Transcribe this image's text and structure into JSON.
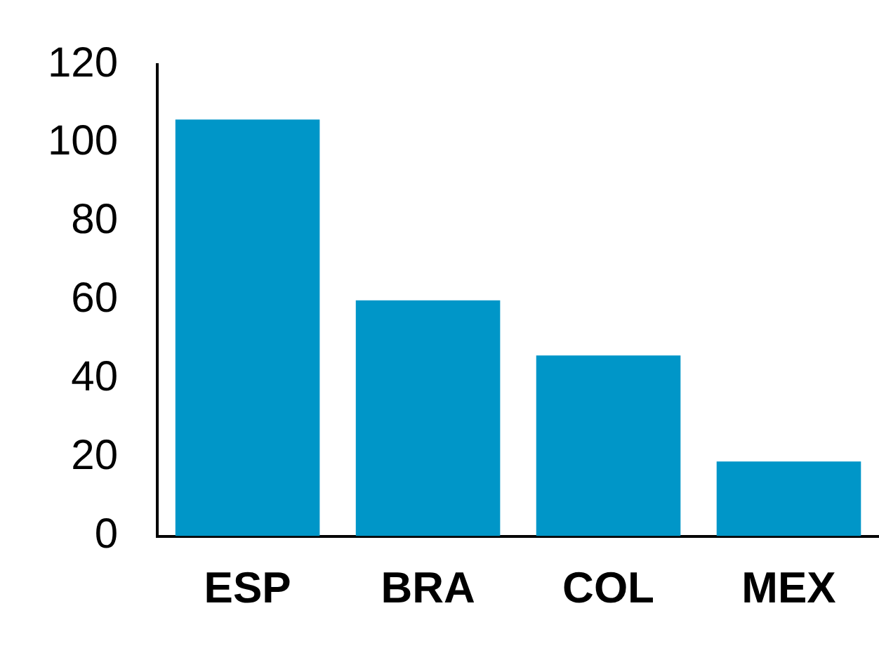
{
  "chart_data": {
    "type": "bar",
    "categories": [
      "ESP",
      "BRA",
      "COL",
      "MEX"
    ],
    "values": [
      106,
      60,
      46,
      19
    ],
    "color": "#0096c8",
    "ylim": [
      0,
      120
    ],
    "yticks": [
      0,
      20,
      40,
      60,
      80,
      100,
      120
    ],
    "grid": false,
    "legend": false
  }
}
